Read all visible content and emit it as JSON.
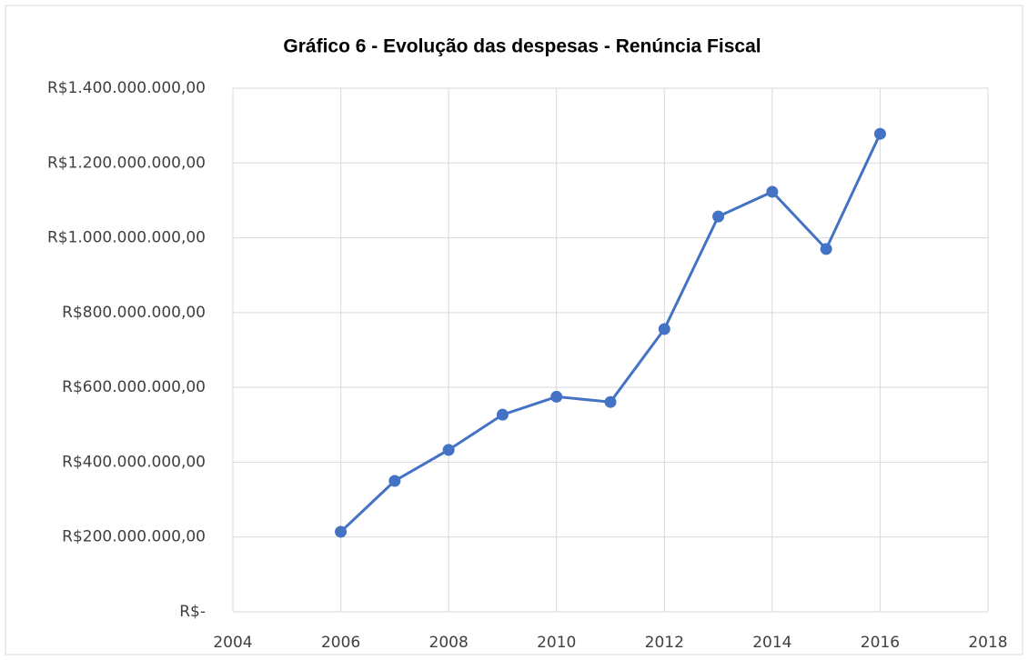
{
  "chart_data": {
    "type": "line",
    "title": "Gráfico 6 - Evolução das despesas - Renúncia Fiscal",
    "x": [
      2006,
      2007,
      2008,
      2009,
      2010,
      2011,
      2012,
      2013,
      2014,
      2015,
      2016
    ],
    "series": [
      {
        "name": "Renúncia Fiscal",
        "color": "#4472c4",
        "values": [
          214000000,
          350000000,
          433000000,
          527000000,
          575000000,
          561000000,
          756000000,
          1057000000,
          1123000000,
          970000000,
          1278000000
        ]
      }
    ],
    "xlim": [
      2004,
      2018
    ],
    "xticks": [
      2004,
      2006,
      2008,
      2010,
      2012,
      2014,
      2016,
      2018
    ],
    "ylim": [
      0,
      1400000000
    ],
    "yticks": [
      {
        "value": 0,
        "label": "R$-"
      },
      {
        "value": 200000000,
        "label": "R$200.000.000,00"
      },
      {
        "value": 400000000,
        "label": "R$400.000.000,00"
      },
      {
        "value": 600000000,
        "label": "R$600.000.000,00"
      },
      {
        "value": 800000000,
        "label": "R$800.000.000,00"
      },
      {
        "value": 1000000000,
        "label": "R$1.000.000.000,00"
      },
      {
        "value": 1200000000,
        "label": "R$1.200.000.000,00"
      },
      {
        "value": 1400000000,
        "label": "R$1.400.000.000,00"
      }
    ],
    "grid": true
  }
}
